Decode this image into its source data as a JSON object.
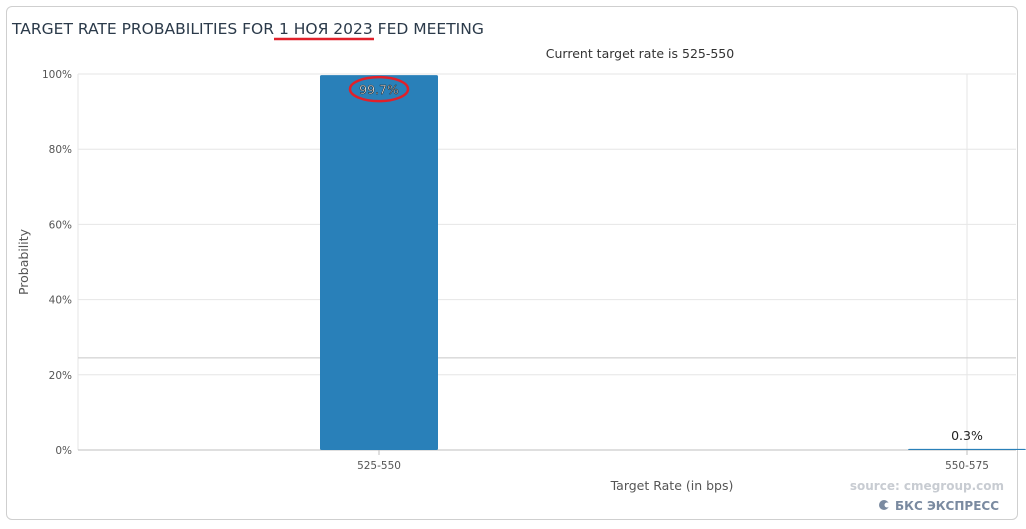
{
  "chart_data": {
    "type": "bar",
    "title": "TARGET RATE PROBABILITIES FOR 1 НОЯ 2023 FED MEETING",
    "title_prefix": "TARGET RATE PROBABILITIES FOR ",
    "title_date": "1 НОЯ 2023",
    "title_suffix": " FED MEETING",
    "subtitle": "Current target rate is 525-550",
    "categories": [
      "525-550",
      "550-575"
    ],
    "values": [
      99.7,
      0.3
    ],
    "data_labels": [
      "99.7%",
      "0.3%"
    ],
    "xlabel": "Target Rate (in bps)",
    "ylabel": "Probability",
    "ylim": [
      0,
      100
    ],
    "yticks": [
      "0%",
      "20%",
      "40%",
      "60%",
      "80%",
      "100%"
    ],
    "grid": true,
    "bar_color": "#2980b9",
    "annotation_color": "#e0202a",
    "reference_line_value": 24.5
  },
  "footer": {
    "source": "source: cmegroup.com",
    "brand": "БКС ЭКСПРЕСС"
  }
}
